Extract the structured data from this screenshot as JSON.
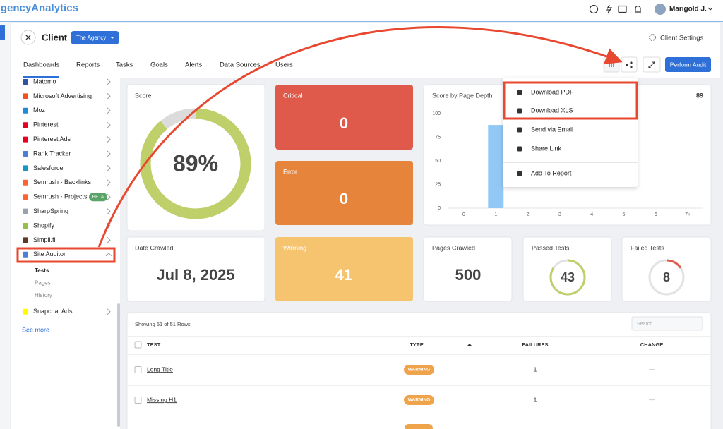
{
  "topbar": {
    "logo": "AgencyAnalytics",
    "user": "Marigold J."
  },
  "header": {
    "title": "Client",
    "client": "The Agency",
    "settings": "Client Settings",
    "tabs": [
      "Dashboards",
      "Reports",
      "Tasks",
      "Goals",
      "Alerts",
      "Data Sources",
      "Users"
    ],
    "action": "Perform Audit"
  },
  "sidebar": {
    "items": [
      {
        "label": "Matomo",
        "color": "#3152a0"
      },
      {
        "label": "Microsoft Advertising",
        "color": "#f25022"
      },
      {
        "label": "Moz",
        "color": "#1f8ad6"
      },
      {
        "label": "Pinterest",
        "color": "#e60023"
      },
      {
        "label": "Pinterest Ads",
        "color": "#e60023"
      },
      {
        "label": "Rank Tracker",
        "color": "#4a7fd4"
      },
      {
        "label": "Salesforce",
        "color": "#1798c1"
      },
      {
        "label": "Semrush - Backlinks",
        "color": "#ff642d"
      },
      {
        "label": "Semrush - Projects",
        "color": "#ff642d",
        "badge": "BETA"
      },
      {
        "label": "SharpSpring",
        "color": "#9aa3ad"
      },
      {
        "label": "Shopify",
        "color": "#95bf47"
      },
      {
        "label": "Simpli.fi",
        "color": "#5b3a29"
      },
      {
        "label": "Site Auditor",
        "color": "#4a7fd4",
        "subitems": [
          "Tests",
          "Pages",
          "History"
        ]
      },
      {
        "label": "Snapchat Ads",
        "color": "#fffc00"
      }
    ],
    "see_more": "See more"
  },
  "cards": {
    "score": {
      "label": "Score",
      "value": 89,
      "value_label": "89%"
    },
    "critical": {
      "label": "Critical",
      "value": 0
    },
    "error": {
      "label": "Error",
      "value": 0
    },
    "date_crawled": {
      "label": "Date Crawled",
      "value": "Jul 8, 2025"
    },
    "warning": {
      "label": "Warning",
      "value": 41
    },
    "pages_crawled": {
      "label": "Pages Crawled",
      "value": 500
    },
    "passed_tests": {
      "label": "Passed Tests",
      "value": 43
    },
    "failed_tests": {
      "label": "Failed Tests",
      "value": 8
    }
  },
  "chart": {
    "type": "bar",
    "title": "Score by Page Depth",
    "summary": 89,
    "categories": [
      "0",
      "1",
      "2",
      "3",
      "4",
      "5",
      "6",
      "7+"
    ],
    "values": [
      0,
      88,
      0,
      0,
      0,
      0,
      0,
      0
    ],
    "color": "#92c8f5",
    "ylim": [
      0,
      100
    ],
    "yticks": [
      0,
      25,
      50,
      75,
      100
    ]
  },
  "menu": {
    "items": [
      "Download PDF",
      "Download XLS",
      "Send via Email",
      "Share Link",
      "Add To Report"
    ]
  },
  "table": {
    "summary": "Showing 51 of 51 Rows",
    "search_placeholder": "Search",
    "columns": [
      "TEST",
      "TYPE",
      "FAILURES",
      "CHANGE"
    ],
    "rows": [
      [
        "Long Title",
        "WARNING",
        1,
        "—"
      ],
      [
        "Missing H1",
        "WARNING",
        1,
        "—"
      ]
    ]
  }
}
